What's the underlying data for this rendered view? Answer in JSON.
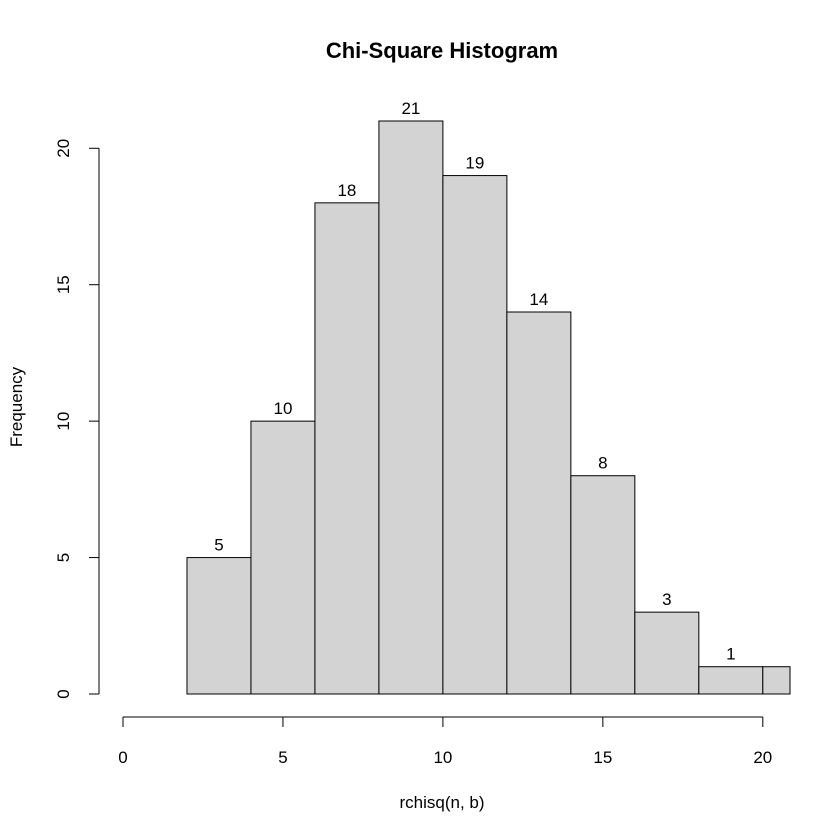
{
  "chart_data": {
    "type": "bar",
    "title": "Chi-Square Histogram",
    "xlabel": "rchisq(n, b)",
    "ylabel": "Frequency",
    "bin_edges": [
      2,
      4,
      6,
      8,
      10,
      12,
      14,
      16,
      18,
      20,
      22
    ],
    "values": [
      5,
      10,
      18,
      21,
      19,
      14,
      8,
      3,
      1,
      1
    ],
    "value_labels": [
      "5",
      "10",
      "18",
      "21",
      "19",
      "14",
      "8",
      "3",
      "1",
      ""
    ],
    "xlim": [
      0,
      20.85
    ],
    "ylim": [
      0,
      21
    ],
    "x_ticks": [
      0,
      5,
      10,
      15,
      20
    ],
    "x_tick_labels": [
      "0",
      "5",
      "10",
      "15",
      "20"
    ],
    "y_ticks": [
      0,
      5,
      10,
      15,
      20
    ],
    "y_tick_labels": [
      "0",
      "5",
      "10",
      "15",
      "20"
    ],
    "grid": false,
    "bar_color": "#d3d3d3",
    "border_color": "#000000"
  }
}
